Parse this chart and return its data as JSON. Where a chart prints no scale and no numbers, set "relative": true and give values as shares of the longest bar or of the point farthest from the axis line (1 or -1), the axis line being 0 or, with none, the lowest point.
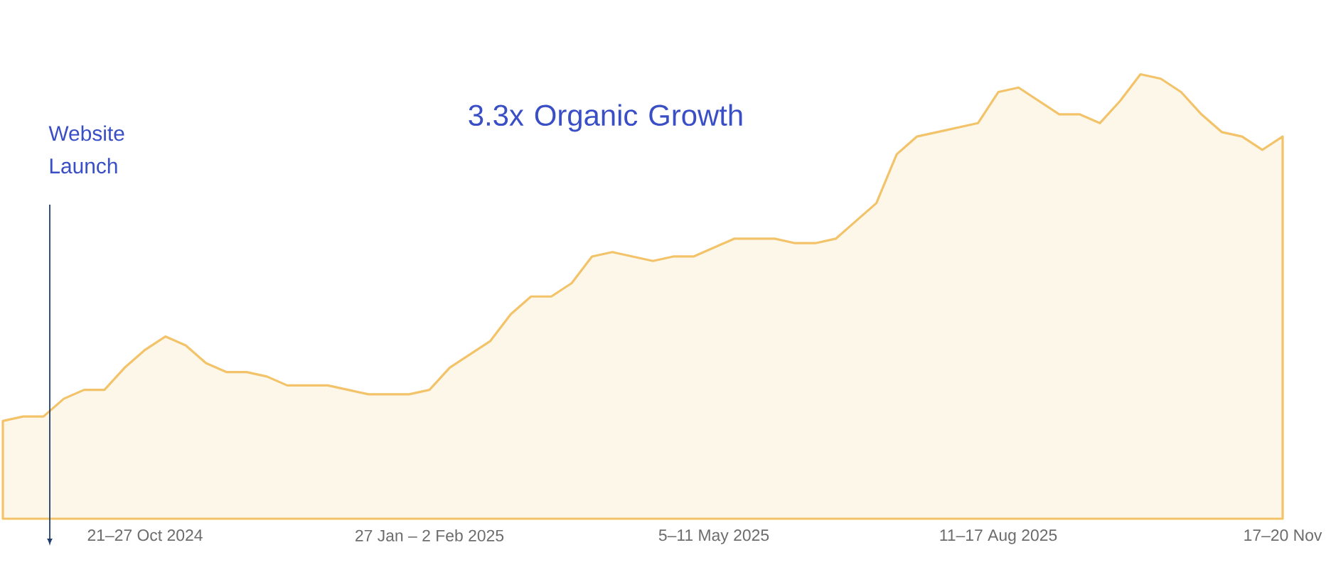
{
  "chart_data": {
    "type": "area",
    "relative": true,
    "color": "#f3c36a",
    "categories": [
      null,
      null,
      null,
      null,
      null,
      null,
      null,
      "21–27 Oct 2024",
      null,
      null,
      null,
      null,
      null,
      null,
      null,
      null,
      null,
      null,
      null,
      null,
      null,
      "27 Jan – 2 Feb 2025",
      null,
      null,
      null,
      null,
      null,
      null,
      null,
      null,
      null,
      null,
      null,
      null,
      null,
      "5–11 May 2025",
      null,
      null,
      null,
      null,
      null,
      null,
      null,
      null,
      null,
      null,
      null,
      null,
      null,
      "11–17 Aug 2025",
      null,
      null,
      null,
      null,
      null,
      null,
      null,
      null,
      null,
      null,
      null,
      null,
      null,
      "17–20 Nov"
    ],
    "values": [
      0.22,
      0.23,
      0.23,
      0.27,
      0.29,
      0.29,
      0.34,
      0.38,
      0.41,
      0.39,
      0.35,
      0.33,
      0.33,
      0.32,
      0.3,
      0.3,
      0.3,
      0.29,
      0.28,
      0.28,
      0.28,
      0.29,
      0.34,
      0.37,
      0.4,
      0.46,
      0.5,
      0.5,
      0.53,
      0.59,
      0.6,
      0.59,
      0.58,
      0.59,
      0.59,
      0.61,
      0.63,
      0.63,
      0.63,
      0.62,
      0.62,
      0.63,
      0.67,
      0.71,
      0.82,
      0.86,
      0.87,
      0.88,
      0.89,
      0.96,
      0.97,
      0.94,
      0.91,
      0.91,
      0.89,
      0.94,
      1,
      0.99,
      0.96,
      0.91,
      0.87,
      0.86,
      0.83,
      0.86
    ],
    "annotations": [
      "Website Launch",
      "3.3x Organic Growth"
    ]
  }
}
